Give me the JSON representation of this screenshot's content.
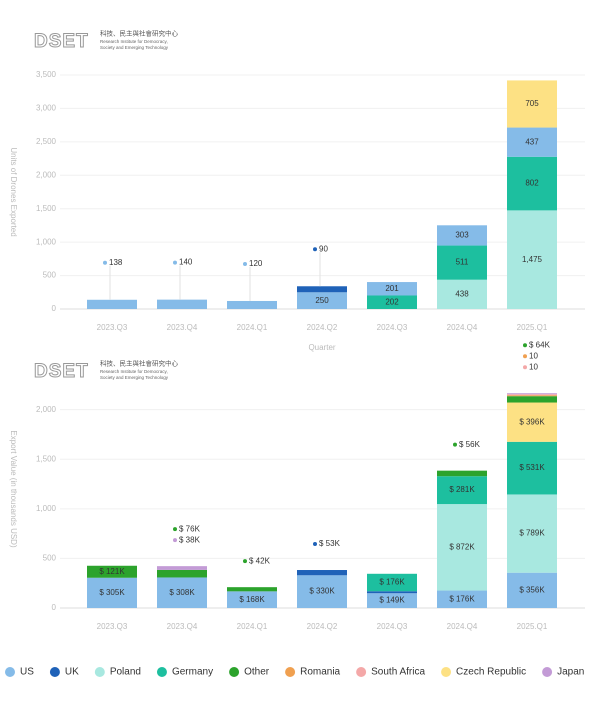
{
  "logo": {
    "name": "DSET",
    "zh": "科技、民主與社會研究中心",
    "en1": "Research Institute for Democracy,",
    "en2": "Society and Emerging Technology"
  },
  "chart_data": [
    {
      "type": "bar",
      "stacked": true,
      "y_label": "Units of Drones Exported",
      "x_label": "Quarter",
      "categories": [
        "2023.Q3",
        "2023.Q4",
        "2024.Q1",
        "2024.Q2",
        "2024.Q3",
        "2024.Q4",
        "2025.Q1"
      ],
      "ylim": [
        0,
        3500
      ],
      "yticks": [
        0,
        500,
        {
          "value": 1000,
          "label": "1,000"
        },
        {
          "value": 1500,
          "label": "1,500"
        },
        {
          "value": 2000,
          "label": "2,000"
        },
        {
          "value": 2500,
          "label": "2,500"
        },
        {
          "value": 3000,
          "label": "3,000"
        },
        {
          "value": 3500,
          "label": "3,500"
        }
      ],
      "grid": true,
      "series": [
        {
          "name": "Poland",
          "color": "#a8e8e0",
          "values": [
            null,
            null,
            null,
            null,
            null,
            438,
            1475
          ],
          "value_labels": [
            null,
            null,
            null,
            null,
            null,
            "438",
            "1,475"
          ]
        },
        {
          "name": "Germany",
          "color": "#1dbf9f",
          "values": [
            null,
            null,
            null,
            null,
            202,
            511,
            802
          ]
        },
        {
          "name": "US",
          "color": "#85bbe8",
          "values": [
            138,
            140,
            120,
            250,
            201,
            303,
            437
          ]
        },
        {
          "name": "UK",
          "color": "#1f62b8",
          "values": [
            null,
            null,
            null,
            90,
            null,
            null,
            null
          ]
        },
        {
          "name": "Czech Republic",
          "color": "#fde184",
          "values": [
            null,
            null,
            null,
            null,
            null,
            null,
            705
          ]
        }
      ]
    },
    {
      "type": "bar",
      "stacked": true,
      "y_label": "Export Value (in thousands USD)",
      "categories": [
        "2023.Q3",
        "2023.Q4",
        "2024.Q1",
        "2024.Q2",
        "2024.Q3",
        "2024.Q4",
        "2025.Q1"
      ],
      "ylim": [
        0,
        2400
      ],
      "yticks": [
        0,
        500,
        {
          "value": 1000,
          "label": "1,000"
        },
        {
          "value": 1500,
          "label": "1,500"
        },
        {
          "value": 2000,
          "label": "2,000"
        }
      ],
      "grid": true,
      "series": [
        {
          "name": "US",
          "color": "#85bbe8",
          "values": [
            305,
            308,
            168,
            330,
            149,
            176,
            356
          ],
          "value_labels": [
            "$ 305K",
            "$ 308K",
            "$ 168K",
            "$ 330K",
            "$ 149K",
            "$ 176K",
            "$ 356K"
          ]
        },
        {
          "name": "UK",
          "color": "#1f62b8",
          "values": [
            null,
            null,
            null,
            53,
            20,
            null,
            null
          ],
          "value_labels": [
            null,
            null,
            null,
            "$ 53K",
            null,
            null,
            null
          ]
        },
        {
          "name": "Poland",
          "color": "#a8e8e0",
          "values": [
            null,
            null,
            null,
            null,
            null,
            872,
            789
          ],
          "value_labels": [
            null,
            null,
            null,
            null,
            null,
            "$ 872K",
            "$ 789K"
          ]
        },
        {
          "name": "Germany",
          "color": "#1dbf9f",
          "values": [
            null,
            null,
            null,
            null,
            176,
            281,
            531
          ],
          "value_labels": [
            null,
            null,
            null,
            null,
            "$ 176K",
            "$ 281K",
            "$ 531K"
          ]
        },
        {
          "name": "Czech Republic",
          "color": "#fde184",
          "values": [
            null,
            null,
            null,
            null,
            null,
            null,
            396
          ],
          "value_labels": [
            null,
            null,
            null,
            null,
            null,
            null,
            "$ 396K"
          ]
        },
        {
          "name": "Other",
          "color": "#2ca32c",
          "values": [
            121,
            76,
            42,
            null,
            null,
            56,
            64
          ],
          "value_labels": [
            "$ 121K",
            "$ 76K",
            "$ 42K",
            null,
            null,
            "$ 56K",
            "$ 64K"
          ]
        },
        {
          "name": "Romania",
          "color": "#f0a050",
          "values": [
            null,
            null,
            null,
            null,
            null,
            null,
            10
          ]
        },
        {
          "name": "South Africa",
          "color": "#f4a8a8",
          "values": [
            null,
            null,
            null,
            null,
            null,
            null,
            10
          ]
        },
        {
          "name": "Japan",
          "color": "#c39bd6",
          "values": [
            null,
            38,
            null,
            null,
            null,
            null,
            10
          ],
          "value_labels": [
            null,
            "$ 38K",
            null,
            null,
            null,
            null,
            null
          ]
        }
      ]
    }
  ]
}
